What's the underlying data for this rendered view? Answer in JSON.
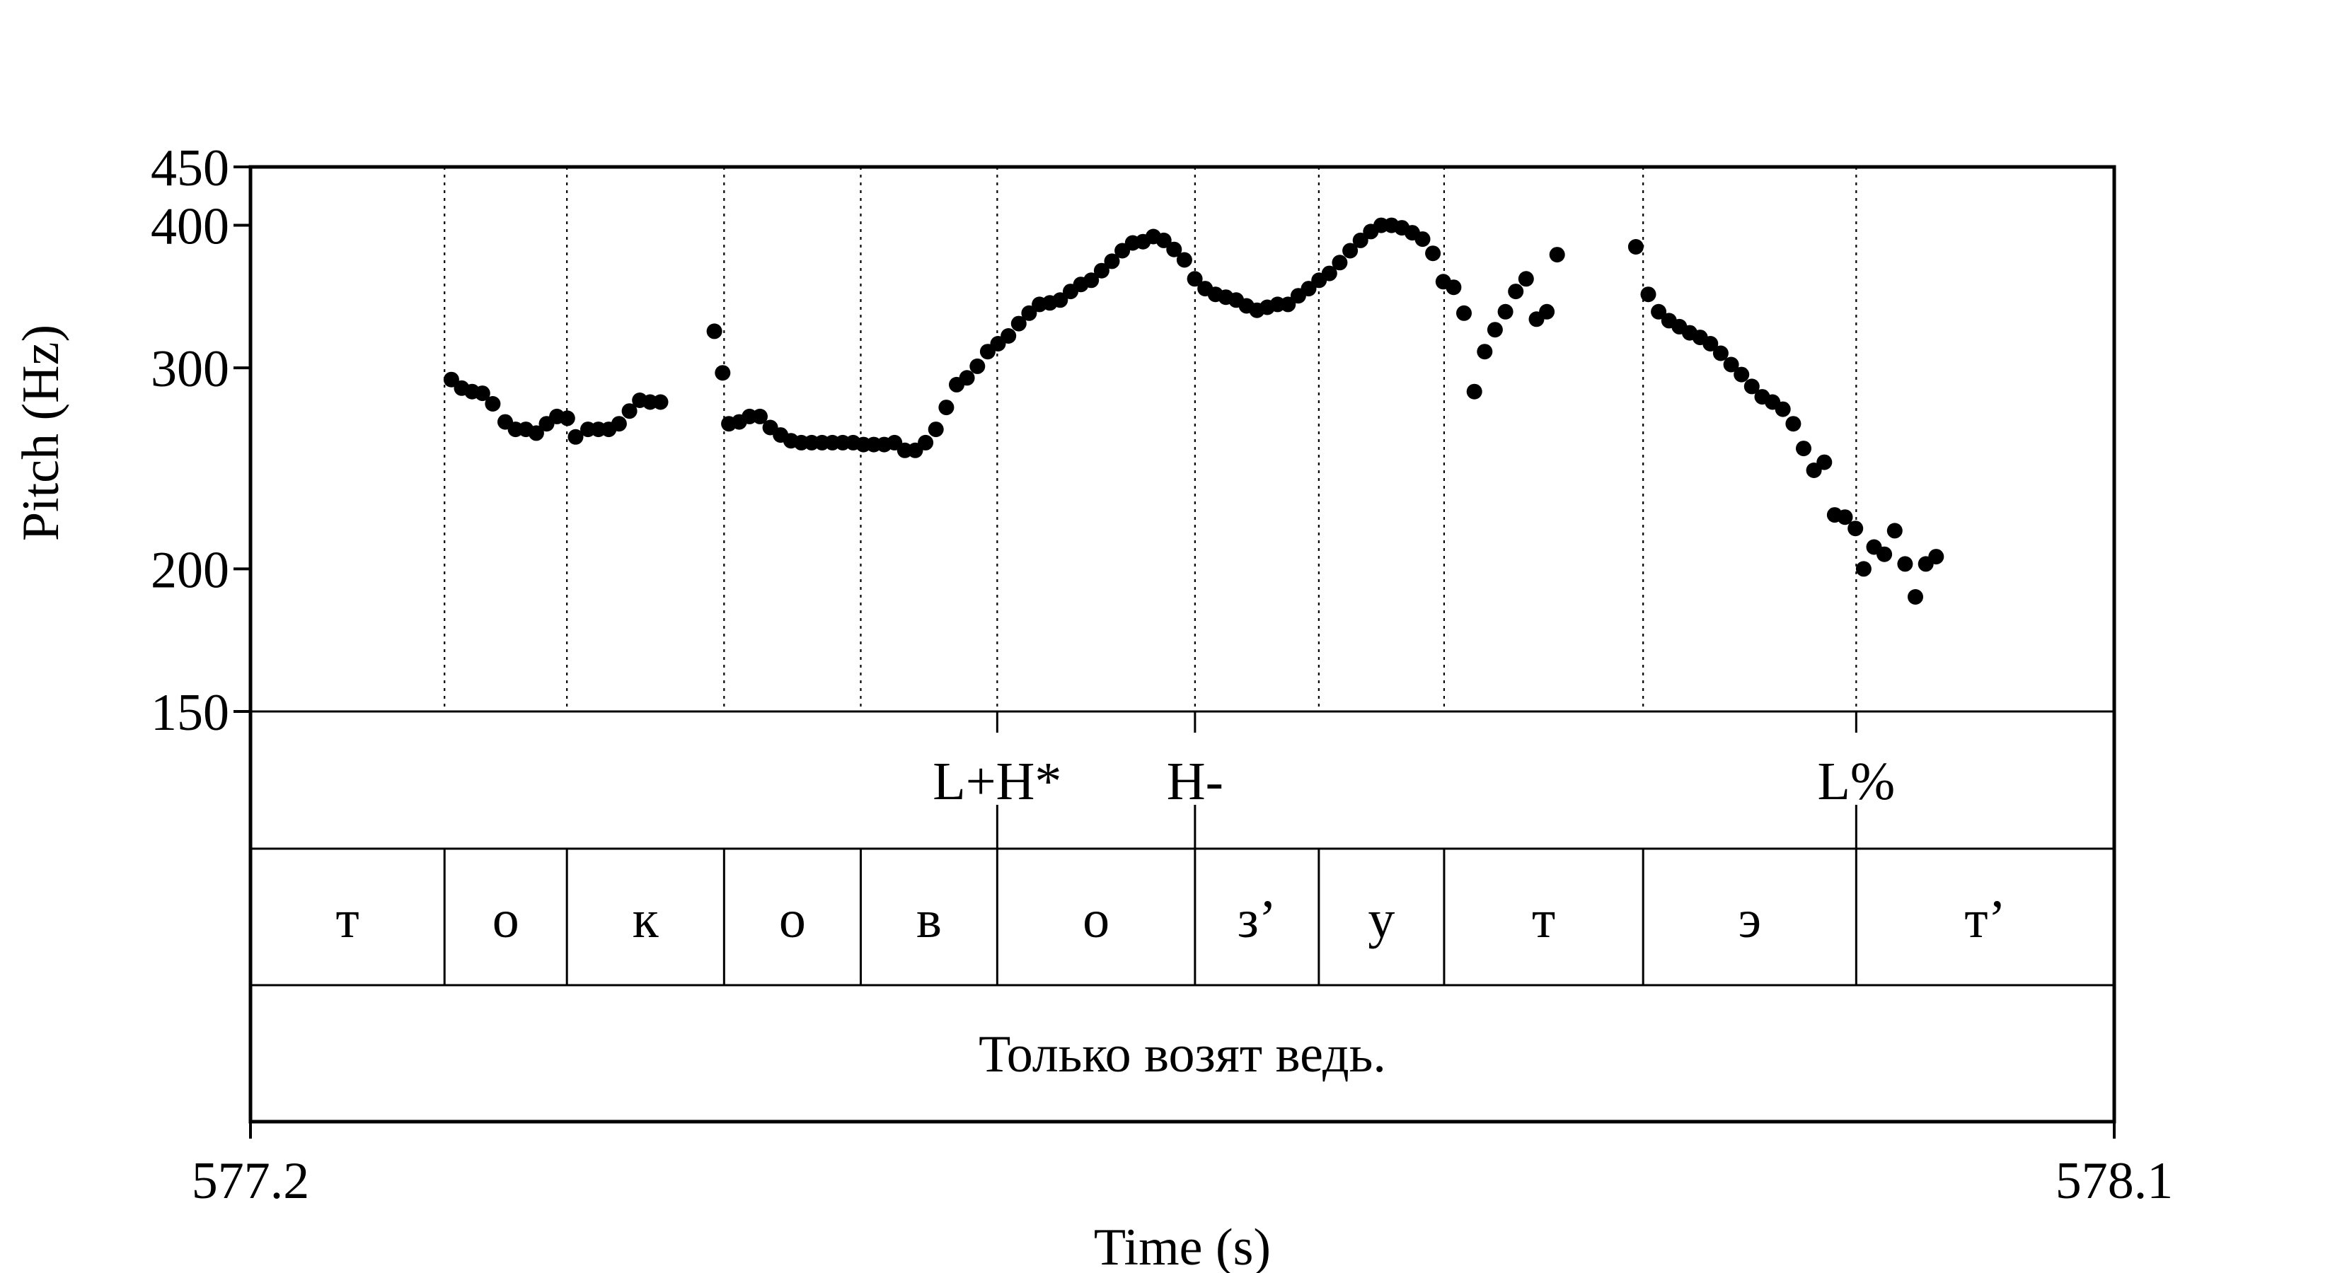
{
  "chart_data": {
    "type": "scatter",
    "xlabel": "Time (s)",
    "ylabel": "Pitch (Hz)",
    "xlim": [
      577.2,
      578.1
    ],
    "ylim": [
      150,
      450
    ],
    "x_tick_labels": [
      "577.2",
      "578.1"
    ],
    "y_ticks": [
      150,
      200,
      300,
      400,
      450
    ],
    "y_tick_labels": [
      "150",
      "200",
      "300",
      "400",
      "450"
    ],
    "grid": false,
    "boundaries": [
      577.2937,
      577.3528,
      577.4287,
      577.4947,
      577.5606,
      577.6561,
      577.7159,
      577.7764,
      577.8725,
      577.9754
    ],
    "tone_tier": [
      {
        "time": 577.5606,
        "label": "L+H*"
      },
      {
        "time": 577.6561,
        "label": "H-"
      },
      {
        "time": 577.9754,
        "label": "L%"
      }
    ],
    "segments": [
      "т",
      "о",
      "к",
      "о",
      "в",
      "о",
      "з’",
      "у",
      "т",
      "э",
      "т’"
    ],
    "sentence": "Только возят ведь.",
    "points": [
      [
        577.297,
        293
      ],
      [
        577.302,
        288
      ],
      [
        577.307,
        286
      ],
      [
        577.312,
        285
      ],
      [
        577.317,
        279
      ],
      [
        577.323,
        269
      ],
      [
        577.328,
        265
      ],
      [
        577.333,
        265
      ],
      [
        577.338,
        263
      ],
      [
        577.343,
        268
      ],
      [
        577.348,
        272
      ],
      [
        577.353,
        271
      ],
      [
        577.357,
        261
      ],
      [
        577.363,
        265
      ],
      [
        577.368,
        265
      ],
      [
        577.373,
        265
      ],
      [
        577.378,
        268
      ],
      [
        577.383,
        275
      ],
      [
        577.388,
        281
      ],
      [
        577.393,
        280
      ],
      [
        577.398,
        280
      ],
      [
        577.424,
        323
      ],
      [
        577.428,
        297
      ],
      [
        577.431,
        268
      ],
      [
        577.436,
        269
      ],
      [
        577.441,
        272
      ],
      [
        577.446,
        272
      ],
      [
        577.451,
        266
      ],
      [
        577.456,
        262
      ],
      [
        577.461,
        259
      ],
      [
        577.466,
        258
      ],
      [
        577.471,
        258
      ],
      [
        577.476,
        258
      ],
      [
        577.481,
        258
      ],
      [
        577.486,
        258
      ],
      [
        577.491,
        258
      ],
      [
        577.496,
        257
      ],
      [
        577.501,
        257
      ],
      [
        577.506,
        257
      ],
      [
        577.511,
        258
      ],
      [
        577.516,
        254
      ],
      [
        577.521,
        254
      ],
      [
        577.526,
        258
      ],
      [
        577.531,
        265
      ],
      [
        577.536,
        277
      ],
      [
        577.541,
        290
      ],
      [
        577.546,
        294
      ],
      [
        577.551,
        301
      ],
      [
        577.556,
        310
      ],
      [
        577.561,
        315
      ],
      [
        577.566,
        320
      ],
      [
        577.571,
        328
      ],
      [
        577.576,
        335
      ],
      [
        577.581,
        341
      ],
      [
        577.586,
        342
      ],
      [
        577.591,
        344
      ],
      [
        577.596,
        350
      ],
      [
        577.601,
        355
      ],
      [
        577.606,
        358
      ],
      [
        577.611,
        365
      ],
      [
        577.616,
        372
      ],
      [
        577.621,
        380
      ],
      [
        577.626,
        386
      ],
      [
        577.631,
        387
      ],
      [
        577.636,
        391
      ],
      [
        577.641,
        388
      ],
      [
        577.646,
        381
      ],
      [
        577.651,
        373
      ],
      [
        577.656,
        359
      ],
      [
        577.661,
        352
      ],
      [
        577.666,
        348
      ],
      [
        577.671,
        346
      ],
      [
        577.676,
        344
      ],
      [
        577.681,
        340
      ],
      [
        577.686,
        337
      ],
      [
        577.691,
        339
      ],
      [
        577.696,
        341
      ],
      [
        577.701,
        341
      ],
      [
        577.706,
        347
      ],
      [
        577.711,
        352
      ],
      [
        577.716,
        358
      ],
      [
        577.721,
        363
      ],
      [
        577.726,
        371
      ],
      [
        577.731,
        380
      ],
      [
        577.736,
        388
      ],
      [
        577.741,
        395
      ],
      [
        577.746,
        400
      ],
      [
        577.751,
        400
      ],
      [
        577.756,
        398
      ],
      [
        577.761,
        394
      ],
      [
        577.766,
        389
      ],
      [
        577.771,
        378
      ],
      [
        577.776,
        357
      ],
      [
        577.781,
        353
      ],
      [
        577.786,
        335
      ],
      [
        577.791,
        286
      ],
      [
        577.796,
        310
      ],
      [
        577.801,
        324
      ],
      [
        577.806,
        336
      ],
      [
        577.811,
        350
      ],
      [
        577.816,
        359
      ],
      [
        577.821,
        331
      ],
      [
        577.826,
        336
      ],
      [
        577.831,
        377
      ],
      [
        577.869,
        383
      ],
      [
        577.875,
        348
      ],
      [
        577.88,
        336
      ],
      [
        577.885,
        330
      ],
      [
        577.89,
        326
      ],
      [
        577.895,
        322
      ],
      [
        577.9,
        319
      ],
      [
        577.905,
        315
      ],
      [
        577.91,
        309
      ],
      [
        577.915,
        302
      ],
      [
        577.92,
        296
      ],
      [
        577.925,
        289
      ],
      [
        577.93,
        283
      ],
      [
        577.935,
        280
      ],
      [
        577.94,
        276
      ],
      [
        577.945,
        268
      ],
      [
        577.95,
        255
      ],
      [
        577.955,
        244
      ],
      [
        577.96,
        248
      ],
      [
        577.965,
        223
      ],
      [
        577.97,
        222
      ],
      [
        577.975,
        217
      ],
      [
        577.979,
        200
      ],
      [
        577.984,
        209
      ],
      [
        577.989,
        206
      ],
      [
        577.994,
        216
      ],
      [
        577.999,
        202
      ],
      [
        578.004,
        189
      ],
      [
        578.009,
        202
      ],
      [
        578.014,
        205
      ]
    ]
  }
}
